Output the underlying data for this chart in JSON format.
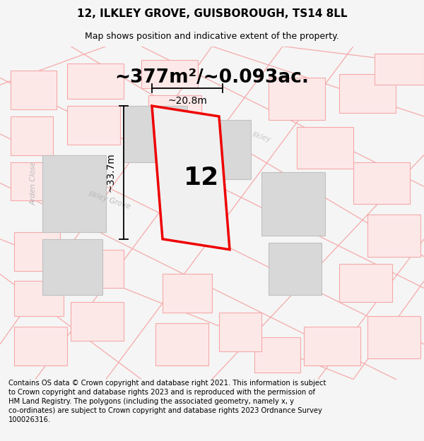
{
  "title_line1": "12, ILKLEY GROVE, GUISBOROUGH, TS14 8LL",
  "title_line2": "Map shows position and indicative extent of the property.",
  "area_text": "~377m²/~0.093ac.",
  "property_number": "12",
  "dim_height": "~33.7m",
  "dim_width": "~20.8m",
  "footer_text": "Contains OS data © Crown copyright and database right 2021. This information is subject\nto Crown copyright and database rights 2023 and is reproduced with the permission of\nHM Land Registry. The polygons (including the associated geometry, namely x, y\nco-ordinates) are subject to Crown copyright and database rights 2023 Ordnance Survey\n100026316.",
  "bg_color": "#f5f5f5",
  "faint_line_color": "#f5aaaa",
  "title_fontsize": 11,
  "subtitle_fontsize": 9,
  "area_fontsize": 19,
  "number_fontsize": 28,
  "dim_fontsize": 10,
  "footer_fontsize": 7.2
}
